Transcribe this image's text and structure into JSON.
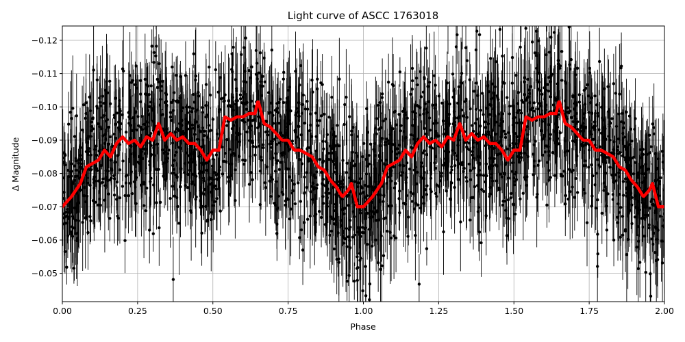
{
  "chart_data": {
    "type": "scatter",
    "title": "Light curve of ASCC 1763018",
    "xlabel": "Phase",
    "ylabel": "Δ Magnitude",
    "xlim": [
      0.0,
      2.0
    ],
    "ylim": [
      -0.0415,
      -0.1243
    ],
    "y_inverted": true,
    "grid": true,
    "x_ticks": [
      0.0,
      0.25,
      0.5,
      0.75,
      1.0,
      1.25,
      1.5,
      1.75,
      2.0
    ],
    "x_tick_labels": [
      "0.00",
      "0.25",
      "0.50",
      "0.75",
      "1.00",
      "1.25",
      "1.50",
      "1.75",
      "2.00"
    ],
    "y_ticks": [
      -0.05,
      -0.06,
      -0.07,
      -0.08,
      -0.09,
      -0.1,
      -0.11,
      -0.12
    ],
    "y_tick_labels": [
      "−0.05",
      "−0.06",
      "−0.07",
      "−0.08",
      "−0.09",
      "−0.10",
      "−0.11",
      "−0.12"
    ],
    "series": [
      {
        "kind": "observations-with-errorbars",
        "color": "#000000",
        "approx_scatter_sigma": 0.012,
        "approx_errorbar_halfwidth": 0.01
      },
      {
        "kind": "smoothed-model",
        "color": "#ff0000",
        "x": [
          0.0,
          0.03,
          0.06,
          0.08,
          0.1,
          0.12,
          0.14,
          0.16,
          0.18,
          0.2,
          0.22,
          0.24,
          0.26,
          0.28,
          0.3,
          0.32,
          0.34,
          0.36,
          0.38,
          0.4,
          0.42,
          0.44,
          0.46,
          0.48,
          0.5,
          0.52,
          0.54,
          0.56,
          0.58,
          0.6,
          0.62,
          0.64,
          0.65,
          0.67,
          0.69,
          0.71,
          0.73,
          0.75,
          0.77,
          0.79,
          0.81,
          0.83,
          0.85,
          0.87,
          0.89,
          0.91,
          0.93,
          0.95,
          0.96,
          0.98,
          1.0,
          1.03,
          1.06,
          1.08,
          1.1,
          1.12,
          1.14,
          1.16,
          1.18,
          1.2,
          1.22,
          1.24,
          1.26,
          1.28,
          1.3,
          1.32,
          1.34,
          1.36,
          1.38,
          1.4,
          1.42,
          1.44,
          1.46,
          1.48,
          1.5,
          1.52,
          1.54,
          1.56,
          1.58,
          1.6,
          1.62,
          1.64,
          1.65,
          1.67,
          1.69,
          1.71,
          1.73,
          1.75,
          1.77,
          1.79,
          1.81,
          1.83,
          1.85,
          1.87,
          1.89,
          1.91,
          1.93,
          1.95,
          1.96,
          1.98,
          2.0
        ],
        "y": [
          -0.07,
          -0.073,
          -0.077,
          -0.082,
          -0.083,
          -0.084,
          -0.087,
          -0.085,
          -0.089,
          -0.091,
          -0.089,
          -0.09,
          -0.088,
          -0.091,
          -0.09,
          -0.095,
          -0.09,
          -0.092,
          -0.09,
          -0.091,
          -0.089,
          -0.089,
          -0.087,
          -0.084,
          -0.087,
          -0.087,
          -0.097,
          -0.096,
          -0.097,
          -0.097,
          -0.098,
          -0.098,
          -0.102,
          -0.095,
          -0.094,
          -0.092,
          -0.09,
          -0.09,
          -0.087,
          -0.087,
          -0.086,
          -0.085,
          -0.082,
          -0.081,
          -0.078,
          -0.076,
          -0.073,
          -0.075,
          -0.077,
          -0.07,
          -0.07,
          -0.073,
          -0.077,
          -0.082,
          -0.083,
          -0.084,
          -0.087,
          -0.085,
          -0.089,
          -0.091,
          -0.089,
          -0.09,
          -0.088,
          -0.091,
          -0.09,
          -0.095,
          -0.09,
          -0.092,
          -0.09,
          -0.091,
          -0.089,
          -0.089,
          -0.087,
          -0.084,
          -0.087,
          -0.087,
          -0.097,
          -0.096,
          -0.097,
          -0.097,
          -0.098,
          -0.098,
          -0.102,
          -0.095,
          -0.094,
          -0.092,
          -0.09,
          -0.09,
          -0.087,
          -0.087,
          -0.086,
          -0.085,
          -0.082,
          -0.081,
          -0.078,
          -0.076,
          -0.073,
          -0.075,
          -0.077,
          -0.07,
          -0.07
        ]
      }
    ]
  }
}
